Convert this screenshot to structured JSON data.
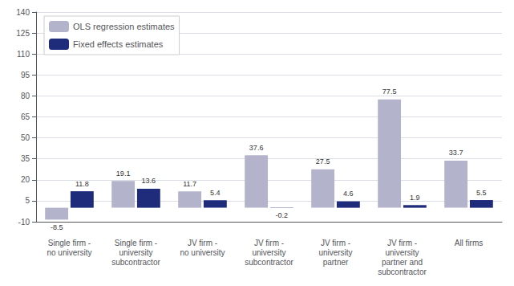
{
  "chart_data": {
    "type": "bar",
    "categories": [
      "Single firm -\nno university",
      "Single firm -\nuniversity\nsubcontractor",
      "JV firm -\nno university",
      "JV firm -\nuniversity\nsubcontractor",
      "JV firm -\nuniversity\npartner",
      "JV firm -\nuniversity\npartner and\nsubcontractor",
      "All firms"
    ],
    "series": [
      {
        "name": "OLS regression estimates",
        "color": "#b3b3cc",
        "values": [
          -8.5,
          19.1,
          11.7,
          37.6,
          27.5,
          77.5,
          33.7
        ]
      },
      {
        "name": "Fixed effects estimates",
        "color": "#1f2b7b",
        "values": [
          11.8,
          13.6,
          5.4,
          -0.2,
          4.6,
          1.9,
          5.5
        ]
      }
    ],
    "ylim": [
      -10,
      140
    ],
    "yticks": [
      -10,
      5,
      20,
      35,
      50,
      65,
      80,
      95,
      110,
      125,
      140
    ],
    "grid": true,
    "legend": "upper left",
    "data_labels": true
  }
}
